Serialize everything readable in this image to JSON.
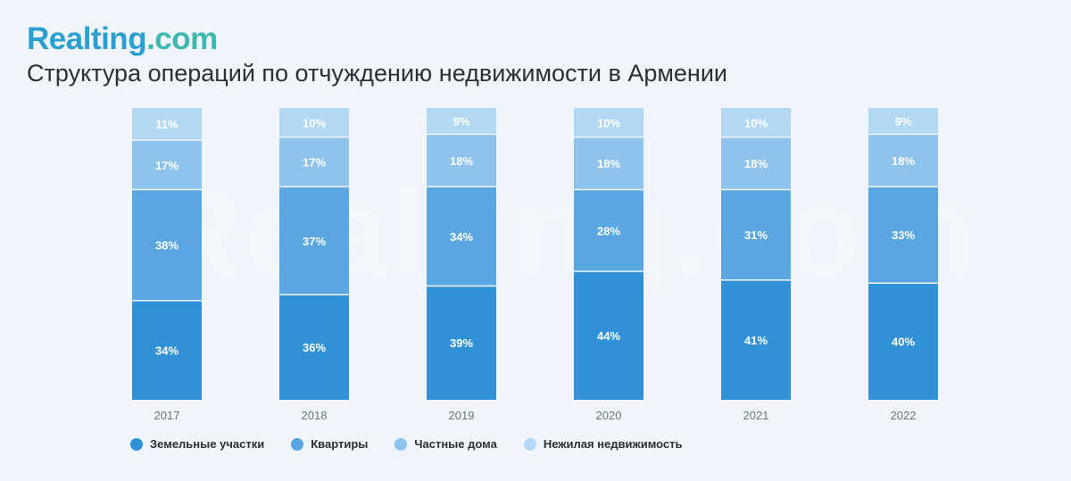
{
  "header": {
    "logo_main": "Realting",
    "logo_suffix": ".com",
    "title": "Структура операций по отчуждению недвижимости в Армении"
  },
  "watermark": "Realting.com",
  "chart_data": {
    "type": "bar",
    "stacked": true,
    "title": "Структура операций по отчуждению недвижимости в Армении",
    "categories": [
      "2017",
      "2018",
      "2019",
      "2020",
      "2021",
      "2022"
    ],
    "unit": "%",
    "ylim": [
      0,
      100
    ],
    "grid": false,
    "legend_position": "bottom-left",
    "series": [
      {
        "name": "Земельные участки",
        "color": "#3191d6",
        "values": [
          34,
          36,
          39,
          44,
          41,
          40
        ]
      },
      {
        "name": "Квартиры",
        "color": "#5aa6e0",
        "values": [
          38,
          37,
          34,
          28,
          31,
          33
        ]
      },
      {
        "name": "Частные дома",
        "color": "#8ec3ec",
        "values": [
          17,
          17,
          18,
          18,
          18,
          18
        ]
      },
      {
        "name": "Нежилая недвижимость",
        "color": "#b3d8f3",
        "values": [
          11,
          10,
          9,
          10,
          10,
          9
        ]
      }
    ]
  }
}
